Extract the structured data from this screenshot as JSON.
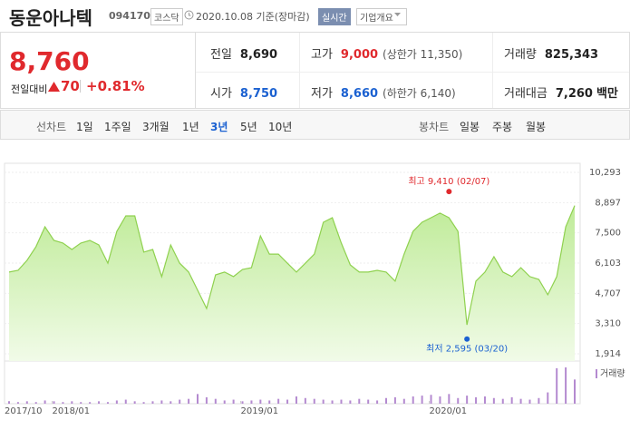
{
  "header": {
    "name": "동운아나텍",
    "code": "094170",
    "market": "코스닥",
    "date": "2020.10.08 기준(장마감)",
    "realtime": "실시간",
    "company_info": "기업개요"
  },
  "quote": {
    "price": "8,760",
    "change_label": "전일대비",
    "change": "70",
    "change_rate": "+0.81%",
    "stats": [
      {
        "label": "전일",
        "value": "8,690",
        "color": "#222222"
      },
      {
        "label": "고가",
        "value": "9,000",
        "note": "(상한가 11,350)",
        "color": "#e0292d"
      },
      {
        "label": "거래량",
        "value": "825,343",
        "color": "#222222"
      },
      {
        "label": "시가",
        "value": "8,750",
        "color": "#1b61d1"
      },
      {
        "label": "저가",
        "value": "8,660",
        "note": "(하한가 6,140)",
        "color": "#1b61d1"
      },
      {
        "label": "거래대금",
        "value": "7,260",
        "unit": "백만",
        "color": "#222222"
      }
    ]
  },
  "tabs": {
    "line_label": "선차트",
    "line": [
      "1일",
      "1주일",
      "3개월",
      "1년",
      "3년",
      "5년",
      "10년"
    ],
    "selected": 4,
    "candle_label": "봉차트",
    "candle": [
      "일봉",
      "주봉",
      "월봉"
    ]
  },
  "chart_data": {
    "type": "area",
    "color": "#8fd14f",
    "fill": "#d4f3b5",
    "values": [
      5690,
      5770,
      6230,
      6860,
      7780,
      7150,
      7030,
      6730,
      7030,
      7150,
      6940,
      6100,
      7570,
      8280,
      8280,
      6610,
      6730,
      5480,
      6940,
      6100,
      5690,
      4850,
      4010,
      5560,
      5690,
      5480,
      5810,
      5890,
      7360,
      6520,
      6520,
      6100,
      5690,
      6100,
      6520,
      7990,
      8200,
      7030,
      6020,
      5690,
      5690,
      5770,
      5690,
      5270,
      6520,
      7570,
      7990,
      8200,
      8410,
      8200,
      7570,
      3250,
      5270,
      5690,
      6400,
      5690,
      5480,
      5890,
      5480,
      5350,
      4640,
      5480,
      7780,
      8760
    ],
    "ylim": [
      1914,
      10293
    ],
    "yticks": [
      {
        "value": 1914,
        "label": "1,914"
      },
      {
        "value": 3310,
        "label": "3,310"
      },
      {
        "value": 4707,
        "label": "4,707"
      },
      {
        "value": 6103,
        "label": "6,103"
      },
      {
        "value": 7500,
        "label": "7,500"
      },
      {
        "value": 8897,
        "label": "8,897"
      },
      {
        "value": 10293,
        "label": "10,293"
      }
    ],
    "xticks": [
      {
        "value": 0,
        "label": "2017/10"
      },
      {
        "value": 4.8,
        "label": "2018/01"
      },
      {
        "value": 25.8,
        "label": "2019/01"
      },
      {
        "value": 46.8,
        "label": "2020/01"
      }
    ],
    "grid": true,
    "annotations": [
      {
        "text": "최고 9,410 (02/07)",
        "value": 9410,
        "index": 49,
        "color": "#e0292d"
      },
      {
        "text": "최저 2,595 (03/20)",
        "value": 2595,
        "index": 51,
        "color": "#1b61d1"
      }
    ],
    "volume": {
      "name": "거래량",
      "color": "#b48ad0",
      "values": [
        3,
        2,
        3,
        2,
        4,
        3,
        2,
        3,
        2,
        2,
        3,
        2,
        4,
        5,
        3,
        2,
        3,
        4,
        3,
        5,
        6,
        12,
        8,
        6,
        4,
        5,
        3,
        4,
        5,
        4,
        6,
        5,
        9,
        7,
        6,
        5,
        4,
        5,
        4,
        6,
        5,
        4,
        7,
        8,
        6,
        9,
        10,
        11,
        9,
        12,
        7,
        10,
        8,
        9,
        7,
        6,
        8,
        6,
        5,
        7,
        14,
        44,
        45,
        30
      ]
    }
  }
}
